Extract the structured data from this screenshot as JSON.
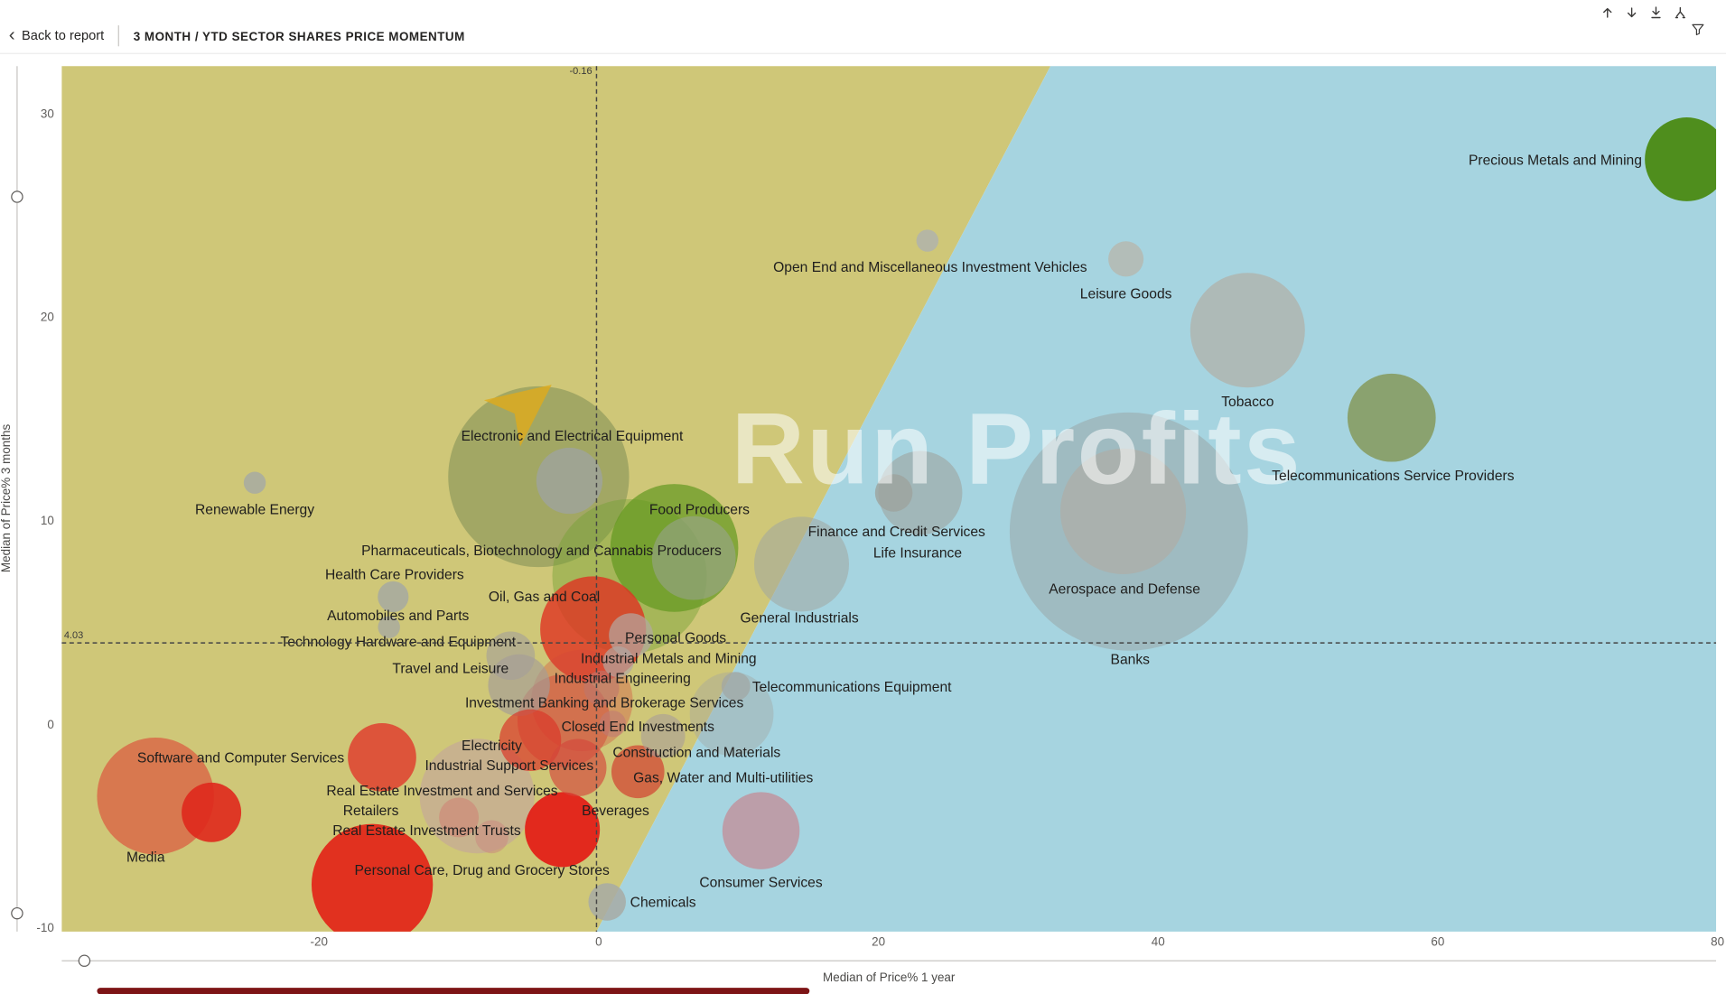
{
  "header": {
    "back_chevron": "‹",
    "back_label": "Back to report",
    "title": "3 MONTH / YTD SECTOR SHARES PRICE MOMENTUM"
  },
  "toolbar": {
    "icons": [
      "drill-up-icon",
      "drill-down-icon",
      "expand-all-levels-icon",
      "go-to-next-level-icon",
      "filter-funnel-icon"
    ]
  },
  "misc": {
    "bottom_bar_color": "#7d1416"
  },
  "chart_data": {
    "type": "scatter",
    "title": "3 MONTH / YTD SECTOR SHARES PRICE MOMENTUM",
    "xlabel": "Median of Price% 1 year",
    "ylabel": "Median of Price% 3 months",
    "x_ticks": [
      -20,
      0,
      20,
      40,
      60,
      80
    ],
    "y_ticks": [
      30,
      20,
      10,
      0,
      -10
    ],
    "xlim": [
      -38.4,
      79.9
    ],
    "ylim": [
      -10.16,
      32.38
    ],
    "ref_x": {
      "value": -0.16,
      "label": "-0.16"
    },
    "ref_y": {
      "value": 4.03,
      "label": "4.03"
    },
    "regions": {
      "left_color": "#cfc778",
      "right_color": "#a6d4e0",
      "boundary_top_x": 32.3,
      "boundary_bottom_x": -0.16
    },
    "watermark": {
      "text": "Run Profits",
      "logo_glyph": "➤"
    },
    "sectors": [
      {
        "name": "Precious Metals and Mining",
        "x": 77.8,
        "y": 27.8,
        "r": 38,
        "fill": "#4a8a12",
        "opacity": 0.95,
        "label_x": 68.4,
        "label_y": 27.8
      },
      {
        "name": "Open End and Miscellaneous Investment Vehicles",
        "x": 23.5,
        "y": 23.8,
        "r": 10,
        "fill": "#b0b3ac",
        "opacity": 0.85,
        "label_x": 23.7,
        "label_y": 22.5
      },
      {
        "name": "Leisure Goods",
        "x": 37.7,
        "y": 22.9,
        "r": 16,
        "fill": "#b5b8b0",
        "opacity": 0.85,
        "label_x": 37.7,
        "label_y": 21.2
      },
      {
        "name": "Tobacco",
        "x": 46.4,
        "y": 19.4,
        "r": 52,
        "fill": "#b0b3ac",
        "opacity": 0.8,
        "label_x": 46.4,
        "label_y": 15.9
      },
      {
        "name": "Telecommunications Service Providers",
        "x": 56.7,
        "y": 15.1,
        "r": 40,
        "fill": "#85995a",
        "opacity": 0.85,
        "label_x": 56.8,
        "label_y": 12.25
      },
      {
        "name": "Electronic and Electrical Equipment",
        "x": -4.3,
        "y": 12.2,
        "r": 82,
        "fill": "#76884f",
        "opacity": 0.5,
        "label_x": -1.9,
        "label_y": 14.2
      },
      {
        "name": "Renewable Energy",
        "x": -24.6,
        "y": 11.9,
        "r": 10,
        "fill": "#a7aaa2",
        "opacity": 0.85,
        "label_x": -24.6,
        "label_y": 10.6
      },
      {
        "name": "Food Producers",
        "x": 5.4,
        "y": 8.7,
        "r": 58,
        "fill": "#63991f",
        "opacity": 0.7,
        "label_x": 7.2,
        "label_y": 10.6
      },
      {
        "name": "Pharmaceuticals, Biotechnology and Cannabis Producers",
        "x": 2.2,
        "y": 7.3,
        "r": 70,
        "fill": "#74a233",
        "opacity": 0.45,
        "label_x": -4.1,
        "label_y": 8.6
      },
      {
        "name": "Finance and Credit Services",
        "x": 23.0,
        "y": 11.4,
        "r": 38,
        "fill": "#9fa49f",
        "opacity": 0.6,
        "label_x": 21.3,
        "label_y": 9.5
      },
      {
        "name": "Life Insurance",
        "x": 21.1,
        "y": 11.4,
        "r": 17,
        "fill": "#9da39d",
        "opacity": 0.8,
        "label_x": 22.8,
        "label_y": 8.5
      },
      {
        "name": "Aerospace and Defense",
        "x": 37.5,
        "y": 10.5,
        "r": 57,
        "fill": "#abb0ac",
        "opacity": 0.9,
        "label_x": 37.6,
        "label_y": 6.7
      },
      {
        "name": "Banks",
        "x": 37.9,
        "y": 9.5,
        "r": 108,
        "fill": "#979d9b",
        "opacity": 0.45,
        "label_x": 38.0,
        "label_y": 3.25
      },
      {
        "name": "Health Care Providers",
        "x": -14.7,
        "y": 6.3,
        "r": 14,
        "fill": "#a6a9a1",
        "opacity": 0.85,
        "label_x": -14.6,
        "label_y": 7.4
      },
      {
        "name": "General Industrials",
        "x": 14.5,
        "y": 7.9,
        "r": 43,
        "fill": "#a1a6a1",
        "opacity": 0.55,
        "label_x": 14.35,
        "label_y": 5.3
      },
      {
        "name": "Oil, Gas and Coal",
        "x": -0.4,
        "y": 4.7,
        "r": 48,
        "fill": "#de3322",
        "opacity": 0.8,
        "label_x": -3.9,
        "label_y": 6.3
      },
      {
        "name": "Automobiles and Parts",
        "x": -15.0,
        "y": 4.8,
        "r": 10,
        "fill": "#a6a9a1",
        "opacity": 0.8,
        "label_x": -14.35,
        "label_y": 5.4
      },
      {
        "name": "Technology Hardware and Equipment",
        "x": -6.3,
        "y": 3.4,
        "r": 22,
        "fill": "#a39e99",
        "opacity": 0.6,
        "label_x": -14.35,
        "label_y": 4.1
      },
      {
        "name": "Personal Goods",
        "x": 2.3,
        "y": 4.4,
        "r": 20,
        "fill": "#b3a8a3",
        "opacity": 0.7,
        "label_x": 5.5,
        "label_y": 4.3
      },
      {
        "name": "Industrial Metals and Mining",
        "x": 1.4,
        "y": 3.1,
        "r": 14,
        "fill": "#b1a6a1",
        "opacity": 0.7,
        "label_x": 5.0,
        "label_y": 3.3
      },
      {
        "name": "Travel and Leisure",
        "x": -5.7,
        "y": 1.95,
        "r": 28,
        "fill": "#a59c97",
        "opacity": 0.65,
        "label_x": -10.6,
        "label_y": 2.8
      },
      {
        "name": "Industrial Engineering",
        "x": 0.2,
        "y": 1.8,
        "r": 16,
        "fill": "#bd766d",
        "opacity": 0.6,
        "label_x": 1.7,
        "label_y": 2.3
      },
      {
        "name": "Telecommunications Equipment",
        "x": 9.8,
        "y": 1.9,
        "r": 13,
        "fill": "#a2a7a4",
        "opacity": 0.75,
        "label_x": 18.1,
        "label_y": 1.85
      },
      {
        "name": "Investment Banking and Brokerage Services",
        "x": -2.5,
        "y": 0.2,
        "r": 42,
        "fill": "#d4473a",
        "opacity": 0.5,
        "label_x": 0.4,
        "label_y": 1.1
      },
      {
        "name": "Closed End Investments",
        "x": 1.0,
        "y": 0.05,
        "r": 12,
        "fill": "#c07b73",
        "opacity": 0.6,
        "label_x": 2.8,
        "label_y": -0.1
      },
      {
        "name": "Electricity",
        "x": -4.9,
        "y": -0.75,
        "r": 28,
        "fill": "#da392a",
        "opacity": 0.7,
        "label_x": -7.65,
        "label_y": -1.0
      },
      {
        "name": "Construction and Materials",
        "x": 4.6,
        "y": -0.55,
        "r": 20,
        "fill": "#a89d97",
        "opacity": 0.6,
        "label_x": 7.0,
        "label_y": -1.3
      },
      {
        "name": "Gas, Water and Multi-utilities",
        "x": 2.8,
        "y": -2.3,
        "r": 24,
        "fill": "#d2402f",
        "opacity": 0.7,
        "label_x": 8.9,
        "label_y": -2.55
      },
      {
        "name": "Industrial Support Services",
        "x": -1.5,
        "y": -2.1,
        "r": 26,
        "fill": "#d4463a",
        "opacity": 0.65,
        "label_x": -6.4,
        "label_y": -2.0
      },
      {
        "name": "Software and Computer Services",
        "x": -15.5,
        "y": -1.6,
        "r": 31,
        "fill": "#e0372a",
        "opacity": 0.8,
        "label_x": -25.6,
        "label_y": -1.6
      },
      {
        "name": "Real Estate Investment and Services",
        "x": -8.7,
        "y": -3.5,
        "r": 52,
        "fill": "#c2a0a0",
        "opacity": 0.55,
        "label_x": -11.2,
        "label_y": -3.2
      },
      {
        "name": "Retailers",
        "x": -10.0,
        "y": -4.55,
        "r": 18,
        "fill": "#cf7a70",
        "opacity": 0.5,
        "label_x": -16.3,
        "label_y": -4.2
      },
      {
        "name": "Beverages",
        "x": -2.6,
        "y": -5.15,
        "r": 34,
        "fill": "#e32118",
        "opacity": 0.95,
        "label_x": 1.2,
        "label_y": -4.2
      },
      {
        "name": "Real Estate Investment Trusts",
        "x": -7.65,
        "y": -5.5,
        "r": 15,
        "fill": "#c9867d",
        "opacity": 0.5,
        "label_x": -12.3,
        "label_y": -5.15
      },
      {
        "name": "Media",
        "x": -31.7,
        "y": -3.5,
        "r": 53,
        "fill": "#dd4233",
        "opacity": 0.6,
        "label_x": -32.4,
        "label_y": -6.5
      },
      {
        "name": "Personal Care, Drug and Grocery Stores",
        "x": -16.2,
        "y": -7.85,
        "r": 55,
        "fill": "#e32418",
        "opacity": 0.92,
        "label_x": -8.35,
        "label_y": -7.1
      },
      {
        "name": "Consumer Services",
        "x": 11.6,
        "y": -5.2,
        "r": 35,
        "fill": "#c2909b",
        "opacity": 0.8,
        "label_x": 11.6,
        "label_y": -7.7
      },
      {
        "name": "Chemicals",
        "x": 0.6,
        "y": -8.7,
        "r": 17,
        "fill": "#a7aaa4",
        "opacity": 0.85,
        "label_x": 4.6,
        "label_y": -8.7
      }
    ],
    "extra_bubbles": [
      {
        "x": -2.1,
        "y": 12.0,
        "r": 30,
        "fill": "#9fa49e",
        "opacity": 0.8
      },
      {
        "x": 6.8,
        "y": 8.2,
        "r": 38,
        "fill": "#9ea39e",
        "opacity": 0.5
      },
      {
        "x": 9.5,
        "y": 0.54,
        "r": 38,
        "fill": "#a3a6a0",
        "opacity": 0.4
      },
      {
        "x": -1.2,
        "y": 1.2,
        "r": 46,
        "fill": "#d4473a",
        "opacity": 0.35
      },
      {
        "x": -27.7,
        "y": -4.3,
        "r": 27,
        "fill": "#df281c",
        "opacity": 0.9
      }
    ]
  }
}
